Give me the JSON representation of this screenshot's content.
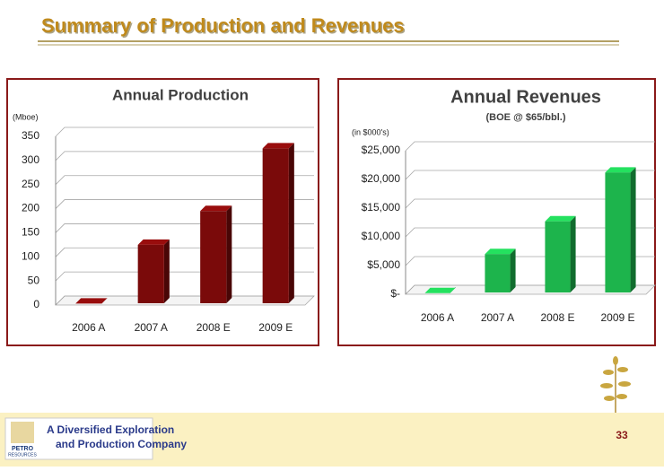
{
  "header": {
    "title": "Summary of Production and Revenues"
  },
  "chart_data": [
    {
      "type": "bar3d",
      "title": "Annual Production",
      "y_label": "(Mboe)",
      "categories": [
        "2006 A",
        "2007 A",
        "2008 E",
        "2009 E"
      ],
      "values": [
        3,
        125,
        195,
        325
      ],
      "color": "#7a0a0a",
      "ylim": [
        0,
        350
      ],
      "yticks": [
        0,
        50,
        100,
        150,
        200,
        250,
        300,
        350
      ],
      "grid": true
    },
    {
      "type": "bar3d",
      "title": "Annual Revenues",
      "subtitle": "(BOE @ $65/bbl.)",
      "y_label": "(in $000's)",
      "categories": [
        "2006 A",
        "2007 A",
        "2008 E",
        "2009 E"
      ],
      "values": [
        200,
        7000,
        12700,
        21200
      ],
      "color": "#1db44c",
      "ylim": [
        0,
        25000
      ],
      "yticks": [
        {
          "value": 0,
          "label": "$-"
        },
        {
          "value": 5000,
          "label": "$5,000"
        },
        {
          "value": 10000,
          "label": "$10,000"
        },
        {
          "value": 15000,
          "label": "$15,000"
        },
        {
          "value": 20000,
          "label": "$20,000"
        },
        {
          "value": 25000,
          "label": "$25,000"
        }
      ],
      "grid": true
    }
  ],
  "footer": {
    "tagline": [
      "A Diversified Exploration",
      "and Production Company"
    ],
    "logo": [
      "PETRO",
      "RESOURCES"
    ],
    "page_number": "33"
  }
}
